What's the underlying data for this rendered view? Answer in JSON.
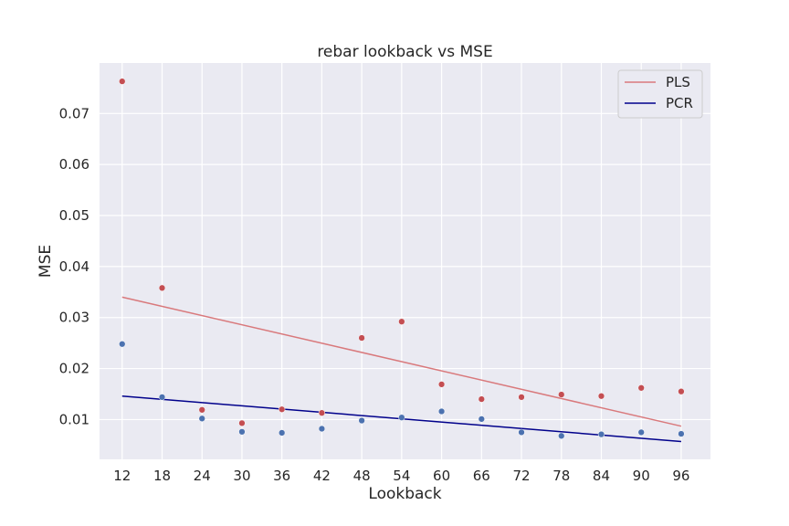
{
  "chart_data": {
    "type": "scatter",
    "title": "rebar lookback vs MSE",
    "xlabel": "Lookback",
    "ylabel": "MSE",
    "x": [
      12,
      18,
      24,
      30,
      36,
      42,
      48,
      54,
      60,
      66,
      72,
      78,
      84,
      90,
      96
    ],
    "xticks": [
      "12",
      "18",
      "24",
      "30",
      "36",
      "42",
      "48",
      "54",
      "60",
      "66",
      "72",
      "78",
      "84",
      "90",
      "96"
    ],
    "yticks": [
      0.01,
      0.02,
      0.03,
      0.04,
      0.05,
      0.06,
      0.07
    ],
    "ytick_labels": [
      "0.01",
      "0.02",
      "0.03",
      "0.04",
      "0.05",
      "0.06",
      "0.07"
    ],
    "xlim": [
      8.6,
      100.4
    ],
    "ylim": [
      0.0022,
      0.0799
    ],
    "grid": true,
    "legend_position": "top-right",
    "series": [
      {
        "name": "PLS",
        "point_color": "#c44e52",
        "line_color": "#d9797c",
        "values": [
          0.0763,
          0.0358,
          0.0119,
          0.0093,
          0.012,
          0.0113,
          0.026,
          0.0292,
          0.0169,
          0.014,
          0.0144,
          0.0149,
          0.0146,
          0.0162,
          0.0155
        ],
        "trend": {
          "start": [
            12,
            0.034
          ],
          "end": [
            96,
            0.0087
          ]
        }
      },
      {
        "name": "PCR",
        "point_color": "#4c72b0",
        "line_color": "#00008b",
        "values": [
          0.0248,
          0.0144,
          0.0102,
          0.0076,
          0.0074,
          0.0082,
          0.0098,
          0.0104,
          0.0116,
          0.0101,
          0.0075,
          0.0068,
          0.0071,
          0.0075,
          0.0072
        ],
        "trend": {
          "start": [
            12,
            0.0146
          ],
          "end": [
            96,
            0.0057
          ]
        }
      }
    ]
  }
}
